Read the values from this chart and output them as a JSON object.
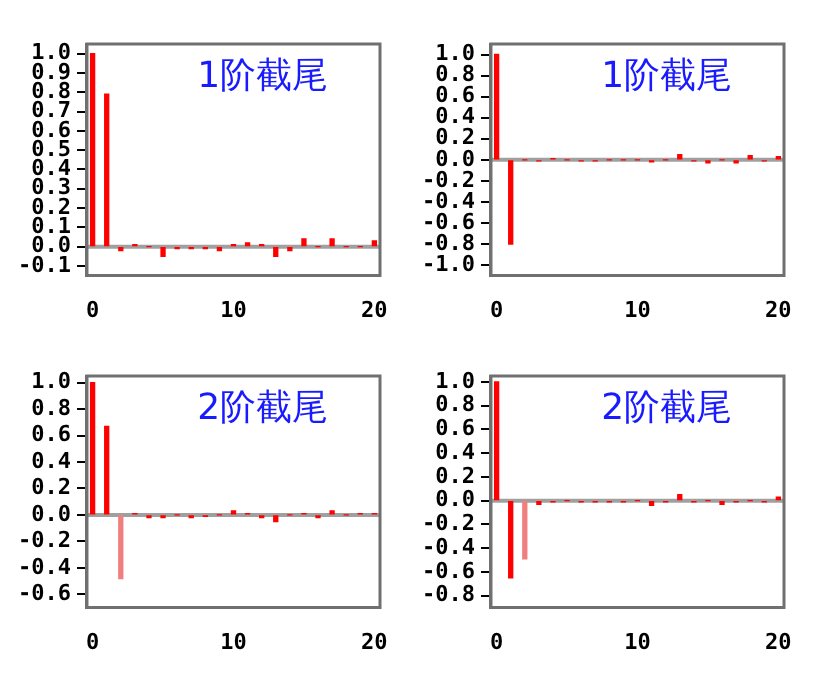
{
  "chart_data": [
    {
      "type": "bar",
      "annotations": [
        "1阶截尾"
      ],
      "x": [
        0,
        1,
        2,
        3,
        4,
        5,
        6,
        7,
        8,
        9,
        10,
        11,
        12,
        13,
        14,
        15,
        16,
        17,
        18,
        19,
        20
      ],
      "values": [
        1,
        0.79,
        -0.02,
        0.01,
        0,
        -0.05,
        -0.01,
        -0.01,
        -0.01,
        -0.02,
        0.01,
        0.02,
        0.01,
        -0.05,
        -0.02,
        0.04,
        0,
        0.04,
        0,
        0,
        0.03
      ],
      "colors": [
        "#ff0000",
        "#ff0000",
        "#ff0000",
        "#ff0000",
        "#ff0000",
        "#ff0000",
        "#ff0000",
        "#ff0000",
        "#ff0000",
        "#ff0000",
        "#ff0000",
        "#ff0000",
        "#ff0000",
        "#ff0000",
        "#ff0000",
        "#ff0000",
        "#ff0000",
        "#ff0000",
        "#ff0000",
        "#ff0000",
        "#ff0000"
      ],
      "xlim": [
        -0.4,
        20.4
      ],
      "xticks": [
        0,
        10,
        20
      ],
      "ylim": [
        -0.15,
        1.05
      ],
      "yticks": [
        {
          "value": -0.1,
          "label": "-0.1"
        },
        {
          "value": 0,
          "label": "0.0"
        },
        0.1,
        0.2,
        0.3,
        0.4,
        0.5,
        0.6,
        0.7,
        0.8,
        0.9,
        {
          "value": 1,
          "label": "1.0"
        }
      ],
      "ref_lines": [
        {
          "axis": "y",
          "value": 0,
          "color": "#a0a0a0"
        }
      ],
      "grid": false,
      "legend": false
    },
    {
      "type": "bar",
      "annotations": [
        "1阶截尾"
      ],
      "x": [
        0,
        1,
        2,
        3,
        4,
        5,
        6,
        7,
        8,
        9,
        10,
        11,
        12,
        13,
        14,
        15,
        16,
        17,
        18,
        19,
        20
      ],
      "values": [
        1,
        -0.8,
        0,
        -0.01,
        0.01,
        0,
        -0.01,
        -0.01,
        0,
        0,
        0,
        -0.02,
        0,
        0.05,
        -0.01,
        -0.03,
        0,
        -0.03,
        0.04,
        -0.01,
        0.03
      ],
      "colors": [
        "#ff0000",
        "#ff0000",
        "#ff0000",
        "#ff0000",
        "#ff0000",
        "#ff0000",
        "#ff0000",
        "#ff0000",
        "#ff0000",
        "#ff0000",
        "#ff0000",
        "#ff0000",
        "#ff0000",
        "#ff0000",
        "#ff0000",
        "#ff0000",
        "#ff0000",
        "#ff0000",
        "#ff0000",
        "#ff0000",
        "#ff0000"
      ],
      "xlim": [
        -0.4,
        20.4
      ],
      "xticks": [
        0,
        10,
        20
      ],
      "ylim": [
        -1.1,
        1.1
      ],
      "yticks": [
        {
          "value": -1,
          "label": "-1.0"
        },
        -0.8,
        -0.6,
        -0.4,
        -0.2,
        {
          "value": 0,
          "label": "0.0"
        },
        0.2,
        0.4,
        0.6,
        0.8,
        {
          "value": 1,
          "label": "1.0"
        }
      ],
      "ref_lines": [
        {
          "axis": "y",
          "value": 0,
          "color": "#a0a0a0"
        }
      ],
      "grid": false,
      "legend": false
    },
    {
      "type": "bar",
      "annotations": [
        "2阶截尾"
      ],
      "x": [
        0,
        1,
        2,
        3,
        4,
        5,
        6,
        7,
        8,
        9,
        10,
        11,
        12,
        13,
        14,
        15,
        16,
        17,
        18,
        19,
        20
      ],
      "values": [
        1,
        0.67,
        -0.48,
        0.01,
        -0.02,
        -0.02,
        0,
        -0.02,
        -0.01,
        0,
        0.03,
        0.01,
        -0.02,
        -0.05,
        0,
        0.01,
        -0.02,
        0.03,
        0,
        0.01,
        0.01
      ],
      "colors": [
        "#ff0000",
        "#ff0000",
        "#f08080",
        "#ff0000",
        "#ff0000",
        "#ff0000",
        "#ff0000",
        "#ff0000",
        "#ff0000",
        "#ff0000",
        "#ff0000",
        "#ff0000",
        "#ff0000",
        "#ff0000",
        "#ff0000",
        "#ff0000",
        "#ff0000",
        "#ff0000",
        "#ff0000",
        "#ff0000",
        "#ff0000"
      ],
      "xlim": [
        -0.4,
        20.4
      ],
      "xticks": [
        0,
        10,
        20
      ],
      "ylim": [
        -0.7,
        1.05
      ],
      "yticks": [
        -0.6,
        -0.4,
        -0.2,
        {
          "value": 0,
          "label": "0.0"
        },
        0.2,
        0.4,
        0.6,
        0.8,
        {
          "value": 1,
          "label": "1.0"
        }
      ],
      "ref_lines": [
        {
          "axis": "y",
          "value": 0,
          "color": "#a0a0a0"
        }
      ],
      "grid": false,
      "legend": false
    },
    {
      "type": "bar",
      "annotations": [
        "2阶截尾"
      ],
      "x": [
        0,
        1,
        2,
        3,
        4,
        5,
        6,
        7,
        8,
        9,
        10,
        11,
        12,
        13,
        14,
        15,
        16,
        17,
        18,
        19,
        20
      ],
      "values": [
        1,
        -0.65,
        -0.49,
        -0.03,
        -0.01,
        0,
        -0.01,
        -0.01,
        -0.01,
        -0.01,
        0,
        -0.04,
        -0.01,
        0.05,
        -0.01,
        0,
        -0.03,
        -0.01,
        0,
        -0.01,
        0.03
      ],
      "colors": [
        "#ff0000",
        "#ff0000",
        "#f08080",
        "#ff0000",
        "#ff0000",
        "#ff0000",
        "#ff0000",
        "#ff0000",
        "#ff0000",
        "#ff0000",
        "#ff0000",
        "#ff0000",
        "#ff0000",
        "#ff0000",
        "#ff0000",
        "#ff0000",
        "#ff0000",
        "#ff0000",
        "#ff0000",
        "#ff0000",
        "#ff0000"
      ],
      "xlim": [
        -0.4,
        20.4
      ],
      "xticks": [
        0,
        10,
        20
      ],
      "ylim": [
        -0.9,
        1.05
      ],
      "yticks": [
        -0.8,
        -0.6,
        -0.4,
        -0.2,
        {
          "value": 0,
          "label": "0.0"
        },
        0.2,
        0.4,
        0.6,
        0.8,
        {
          "value": 1,
          "label": "1.0"
        }
      ],
      "ref_lines": [
        {
          "axis": "y",
          "value": 0,
          "color": "#a0a0a0"
        }
      ],
      "grid": false,
      "legend": false
    }
  ]
}
